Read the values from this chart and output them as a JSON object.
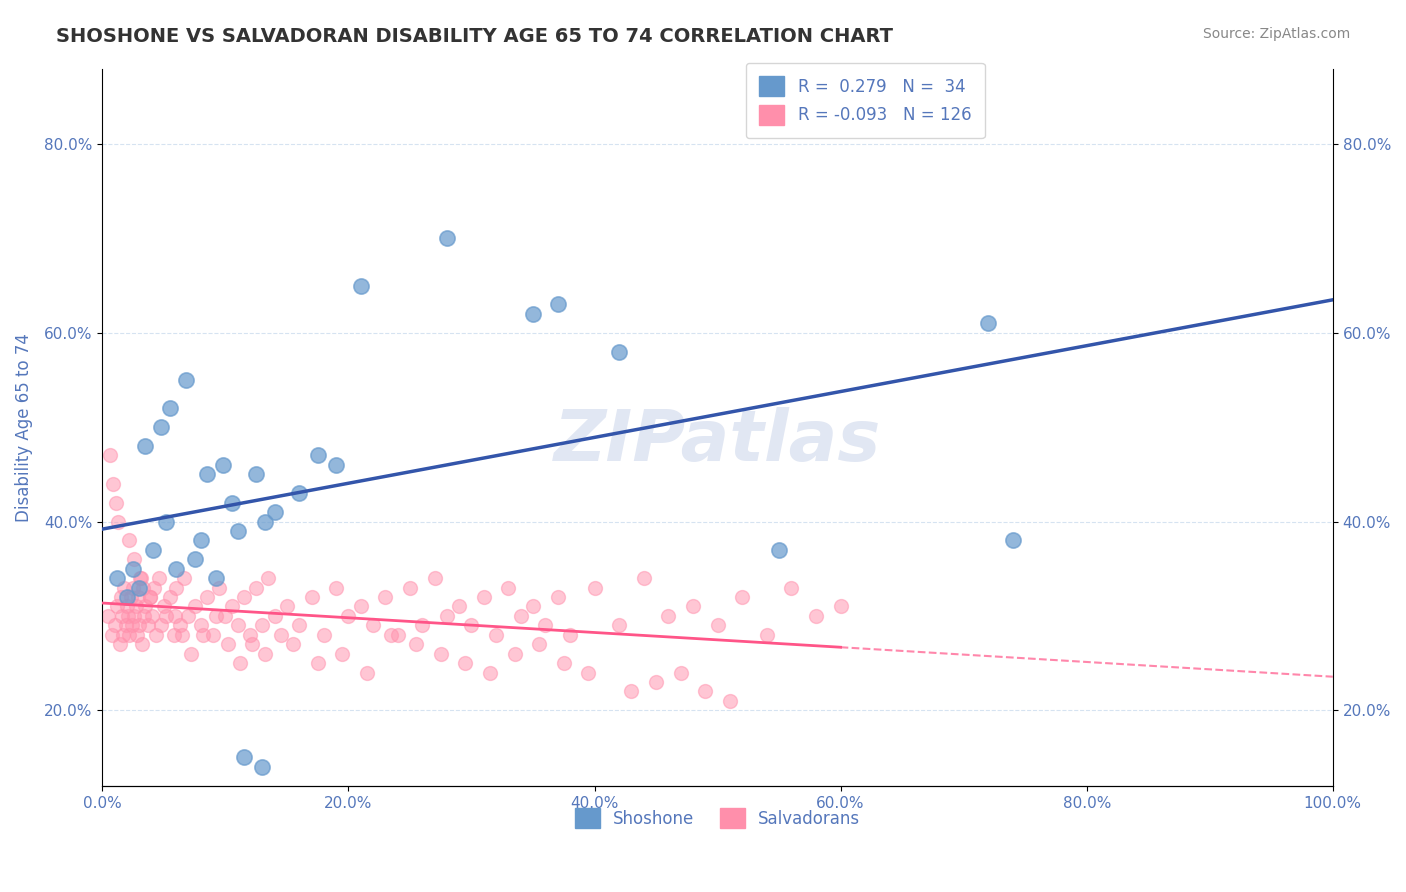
{
  "title": "SHOSHONE VS SALVADORAN DISABILITY AGE 65 TO 74 CORRELATION CHART",
  "source": "Source: ZipAtlas.com",
  "ylabel": "Disability Age 65 to 74",
  "xlabel": "",
  "xlim": [
    0,
    100
  ],
  "ylim": [
    12,
    88
  ],
  "yticks": [
    20,
    40,
    60,
    80
  ],
  "xticks": [
    0,
    20,
    40,
    60,
    80,
    100
  ],
  "shoshone_R": 0.279,
  "shoshone_N": 34,
  "salvadoran_R": -0.093,
  "salvadoran_N": 126,
  "blue_color": "#6699CC",
  "pink_color": "#FF8FAB",
  "blue_line_color": "#3355AA",
  "pink_line_color": "#FF5588",
  "title_color": "#333333",
  "axis_color": "#5577BB",
  "background_color": "#FFFFFF",
  "watermark": "ZIPatlas",
  "shoshone_x": [
    1.2,
    2.5,
    3.0,
    4.1,
    5.2,
    6.0,
    7.5,
    8.0,
    9.2,
    10.5,
    11.0,
    12.5,
    13.2,
    14.0,
    16.0,
    17.5,
    19.0,
    21.0,
    28.0,
    35.0,
    37.0,
    42.0,
    55.0,
    72.0,
    74.0,
    2.0,
    3.5,
    4.8,
    5.5,
    6.8,
    8.5,
    9.8,
    11.5,
    13.0
  ],
  "shoshone_y": [
    34,
    35,
    33,
    37,
    40,
    35,
    36,
    38,
    34,
    42,
    39,
    45,
    40,
    41,
    43,
    47,
    46,
    65,
    70,
    62,
    63,
    58,
    37,
    61,
    38,
    32,
    48,
    50,
    52,
    55,
    45,
    46,
    15,
    14
  ],
  "salvadoran_x": [
    0.5,
    0.8,
    1.0,
    1.2,
    1.4,
    1.5,
    1.6,
    1.7,
    1.8,
    1.9,
    2.0,
    2.1,
    2.2,
    2.3,
    2.4,
    2.5,
    2.6,
    2.7,
    2.8,
    2.9,
    3.0,
    3.1,
    3.2,
    3.3,
    3.4,
    3.5,
    3.7,
    3.9,
    4.0,
    4.2,
    4.4,
    4.6,
    4.8,
    5.0,
    5.2,
    5.5,
    5.8,
    6.0,
    6.3,
    6.6,
    7.0,
    7.5,
    8.0,
    8.5,
    9.0,
    9.5,
    10.0,
    10.5,
    11.0,
    11.5,
    12.0,
    12.5,
    13.0,
    13.5,
    14.0,
    15.0,
    16.0,
    17.0,
    18.0,
    19.0,
    20.0,
    21.0,
    22.0,
    23.0,
    24.0,
    25.0,
    26.0,
    27.0,
    28.0,
    29.0,
    30.0,
    31.0,
    32.0,
    33.0,
    34.0,
    35.0,
    36.0,
    37.0,
    38.0,
    40.0,
    42.0,
    44.0,
    46.0,
    48.0,
    50.0,
    52.0,
    54.0,
    56.0,
    58.0,
    60.0,
    0.6,
    0.9,
    1.1,
    1.3,
    2.15,
    2.55,
    3.15,
    3.85,
    5.9,
    6.5,
    7.2,
    8.2,
    9.2,
    10.2,
    11.2,
    12.2,
    13.2,
    14.5,
    15.5,
    17.5,
    19.5,
    21.5,
    23.5,
    25.5,
    27.5,
    29.5,
    31.5,
    33.5,
    35.5,
    37.5,
    39.5,
    43.0,
    45.0,
    47.0,
    49.0,
    51.0
  ],
  "salvadoran_y": [
    30,
    28,
    29,
    31,
    27,
    32,
    30,
    28,
    33,
    29,
    31,
    30,
    28,
    32,
    29,
    33,
    30,
    31,
    28,
    32,
    29,
    34,
    27,
    33,
    30,
    31,
    29,
    32,
    30,
    33,
    28,
    34,
    29,
    31,
    30,
    32,
    28,
    33,
    29,
    34,
    30,
    31,
    29,
    32,
    28,
    33,
    30,
    31,
    29,
    32,
    28,
    33,
    29,
    34,
    30,
    31,
    29,
    32,
    28,
    33,
    30,
    31,
    29,
    32,
    28,
    33,
    29,
    34,
    30,
    31,
    29,
    32,
    28,
    33,
    30,
    31,
    29,
    32,
    28,
    33,
    29,
    34,
    30,
    31,
    29,
    32,
    28,
    33,
    30,
    31,
    47,
    44,
    42,
    40,
    38,
    36,
    34,
    32,
    30,
    28,
    26,
    28,
    30,
    27,
    25,
    27,
    26,
    28,
    27,
    25,
    26,
    24,
    28,
    27,
    26,
    25,
    24,
    26,
    27,
    25,
    24,
    22,
    23,
    24,
    22,
    21
  ]
}
